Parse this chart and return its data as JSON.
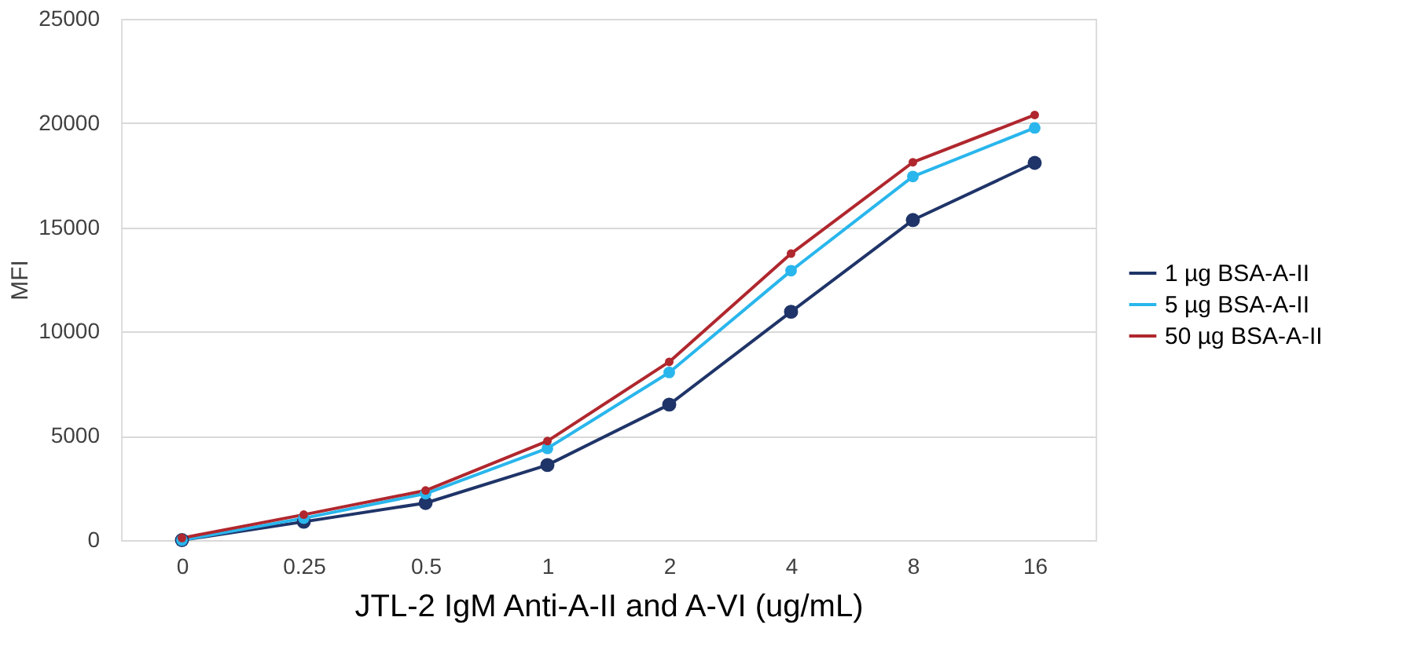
{
  "chart_data": {
    "type": "line",
    "xlabel": "JTL-2 IgM Anti-A-II and A-VI (ug/mL)",
    "ylabel": "MFI",
    "categories": [
      "0",
      "0.25",
      "0.5",
      "1",
      "2",
      "4",
      "8",
      "16"
    ],
    "series": [
      {
        "name": "1 µg BSA-A-II",
        "color": "#1f3468",
        "values": [
          0,
          880,
          1780,
          3600,
          6500,
          10950,
          15350,
          18090
        ]
      },
      {
        "name": "5 µg BSA-A-II",
        "color": "#29b6ec",
        "values": [
          0,
          1050,
          2230,
          4400,
          8040,
          12920,
          17440,
          19770
        ]
      },
      {
        "name": "50 µg BSA-A-II",
        "color": "#b0272e",
        "values": [
          100,
          1220,
          2380,
          4750,
          8550,
          13740,
          18120,
          20390
        ]
      }
    ],
    "ylim": [
      0,
      25000
    ],
    "yticks": [
      0,
      5000,
      10000,
      15000,
      20000,
      25000
    ],
    "grid": "y",
    "legend": "right",
    "marker": "circle",
    "line_style": "solid"
  }
}
